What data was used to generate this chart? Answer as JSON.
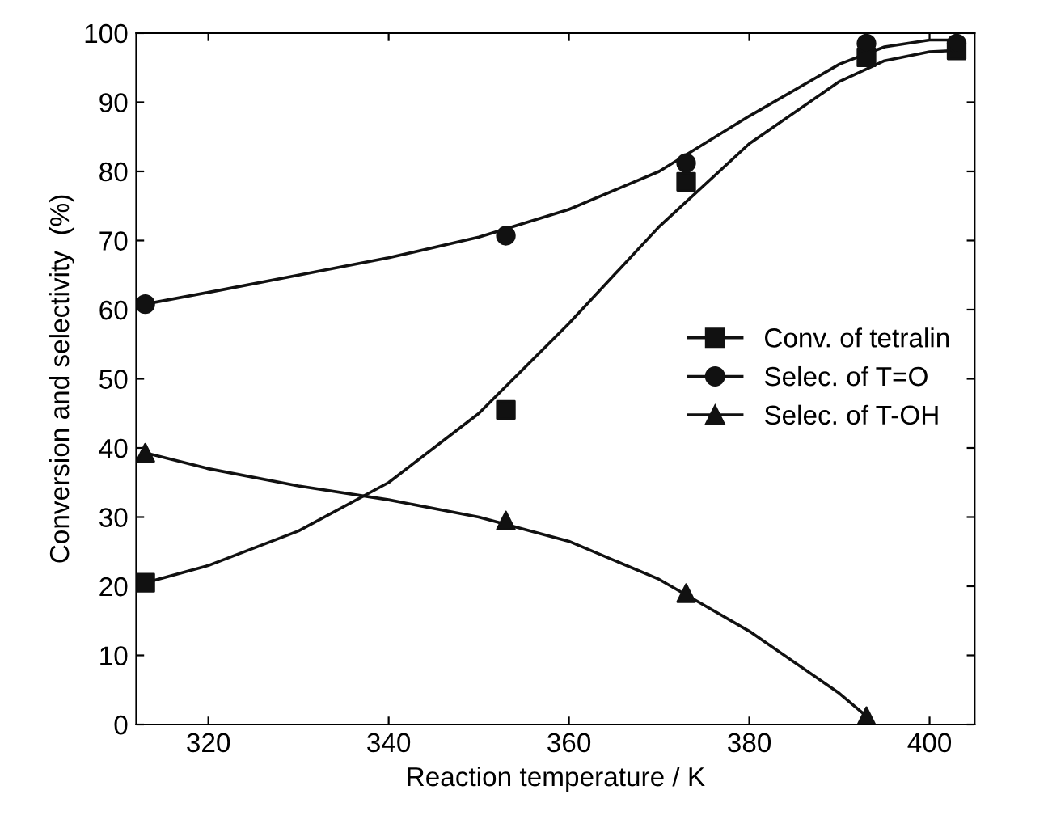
{
  "chart_data": {
    "type": "scatter",
    "xlabel": "Reaction temperature / K",
    "ylabel": "Conversion and selectivity  (%)",
    "xlim": [
      312,
      405
    ],
    "xticks": [
      320,
      340,
      360,
      380,
      400
    ],
    "ylim": [
      0,
      100
    ],
    "yticks": [
      0,
      10,
      20,
      30,
      40,
      50,
      60,
      70,
      80,
      90,
      100
    ],
    "grid": false,
    "legend": "center right",
    "series": [
      {
        "name": "Conv. of tetralin",
        "marker": "square",
        "color": "#111111",
        "x": [
          313,
          353,
          373,
          393,
          403
        ],
        "values": [
          20.5,
          45.5,
          78.5,
          96.5,
          97.5
        ]
      },
      {
        "name": "Selec. of T=O",
        "marker": "circle",
        "color": "#111111",
        "x": [
          313,
          353,
          373,
          393,
          403
        ],
        "values": [
          60.8,
          70.7,
          81.2,
          98.5,
          98.5
        ]
      },
      {
        "name": "Selec. of T-OH",
        "marker": "triangle",
        "color": "#111111",
        "x": [
          313,
          353,
          373,
          393
        ],
        "values": [
          39.3,
          29.5,
          19,
          1.2
        ]
      },
      {
        "type": "line",
        "color": "#111111",
        "x": [
          313,
          320,
          330,
          340,
          350,
          360,
          370,
          380,
          390,
          395,
          400,
          403
        ],
        "values": [
          20.5,
          23,
          28,
          35,
          45,
          58,
          72,
          84,
          93,
          96,
          97.3,
          97.5
        ]
      },
      {
        "type": "line",
        "color": "#111111",
        "x": [
          313,
          320,
          330,
          340,
          350,
          360,
          370,
          380,
          390,
          395,
          400,
          403
        ],
        "values": [
          60.8,
          62.5,
          65,
          67.5,
          70.5,
          74.5,
          80,
          88,
          95.5,
          98,
          99,
          99
        ]
      },
      {
        "type": "line",
        "color": "#111111",
        "x": [
          313,
          320,
          330,
          340,
          350,
          360,
          370,
          380,
          390,
          393
        ],
        "values": [
          39.3,
          37,
          34.5,
          32.5,
          30,
          26.5,
          21,
          13.5,
          4.5,
          1.2
        ]
      }
    ]
  }
}
